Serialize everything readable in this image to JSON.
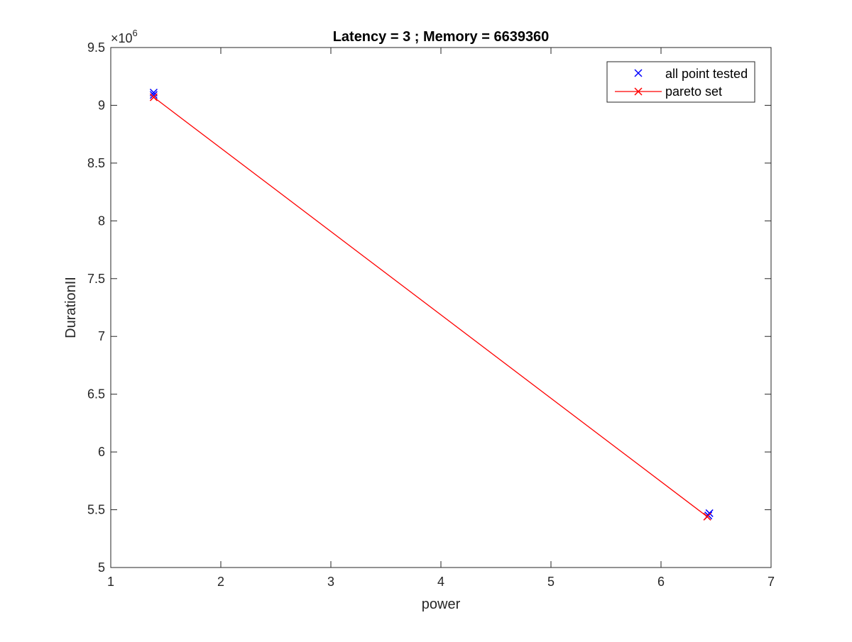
{
  "chart_data": {
    "type": "scatter",
    "title": "Latency = 3 ; Memory = 6639360",
    "xlabel": "power",
    "ylabel": "DurationII",
    "xlim": [
      1,
      7
    ],
    "ylim": [
      5000000,
      9500000
    ],
    "x_ticks": [
      1,
      2,
      3,
      4,
      5,
      6,
      7
    ],
    "x_tick_labels": [
      "1",
      "2",
      "3",
      "4",
      "5",
      "6",
      "7"
    ],
    "y_ticks": [
      5000000,
      5500000,
      6000000,
      6500000,
      7000000,
      7500000,
      8000000,
      8500000,
      9000000,
      9500000
    ],
    "y_tick_labels": [
      "5",
      "5.5",
      "6",
      "6.5",
      "7",
      "7.5",
      "8",
      "8.5",
      "9",
      "9.5"
    ],
    "y_exponent": {
      "base": "×10",
      "power": "6"
    },
    "grid": false,
    "legend_position": "top-right",
    "series": [
      {
        "name": "all point tested",
        "style": "markers",
        "marker": "x",
        "color": "#0000ff",
        "points": [
          {
            "x": 1.39,
            "y": 9110000
          },
          {
            "x": 1.39,
            "y": 9090000
          },
          {
            "x": 6.44,
            "y": 5470000
          },
          {
            "x": 6.43,
            "y": 5450000
          }
        ]
      },
      {
        "name": "pareto set",
        "style": "line-markers",
        "marker": "x",
        "color": "#ff0000",
        "points": [
          {
            "x": 1.39,
            "y": 9070000
          },
          {
            "x": 6.42,
            "y": 5440000
          }
        ]
      }
    ]
  }
}
